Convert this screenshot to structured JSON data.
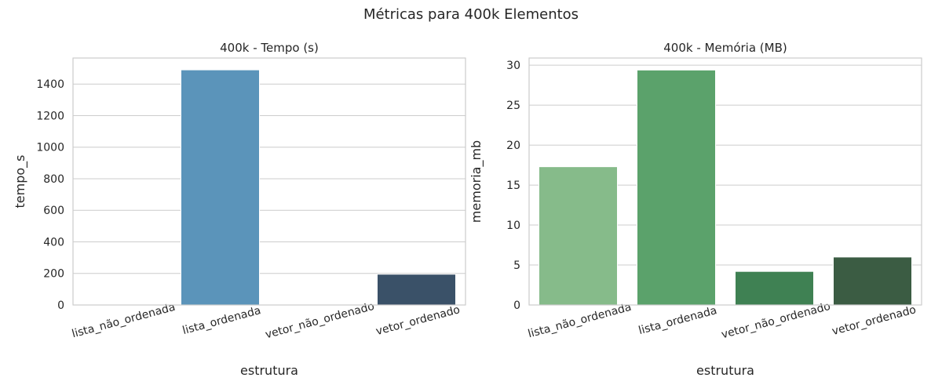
{
  "suptitle": "Métricas para 400k Elementos",
  "chart_data": [
    {
      "type": "bar",
      "title": "400k - Tempo (s)",
      "xlabel": "estrutura",
      "ylabel": "tempo_s",
      "categories": [
        "lista_não_ordenada",
        "lista_ordenada",
        "vetor_não_ordenado",
        "vetor_ordenado"
      ],
      "values": [
        0.2,
        1490,
        0.1,
        195
      ],
      "colors": [
        "#6aa2cc",
        "#5b94ba",
        "#4a7392",
        "#3a5168"
      ],
      "yticks": [
        0,
        200,
        400,
        600,
        800,
        1000,
        1200,
        1400
      ],
      "ylim": [
        0,
        1565
      ],
      "grid": true
    },
    {
      "type": "bar",
      "title": "400k - Memória (MB)",
      "xlabel": "estrutura",
      "ylabel": "memoria_mb",
      "categories": [
        "lista_não_ordenada",
        "lista_ordenada",
        "vetor_não_ordenado",
        "vetor_ordenado"
      ],
      "values": [
        17.3,
        29.4,
        4.2,
        6.0
      ],
      "colors": [
        "#86bb8a",
        "#5ba26b",
        "#3f8153",
        "#3b5c43"
      ],
      "yticks": [
        0,
        5,
        10,
        15,
        20,
        25,
        30
      ],
      "ylim": [
        0,
        30.9
      ],
      "grid": true
    }
  ]
}
